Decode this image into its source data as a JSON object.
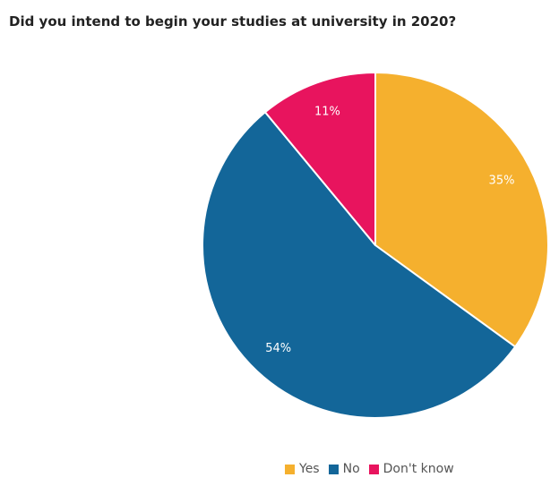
{
  "chart_data": {
    "type": "pie",
    "title": "Did you intend to begin your studies at university in 2020?",
    "categories": [
      "Yes",
      "No",
      "Don't know"
    ],
    "values": [
      35,
      54,
      11
    ],
    "labels": [
      "35%",
      "54%",
      "11%"
    ],
    "colors": [
      "#F5B02E",
      "#136699",
      "#E8145E"
    ],
    "legend_position": "bottom"
  }
}
